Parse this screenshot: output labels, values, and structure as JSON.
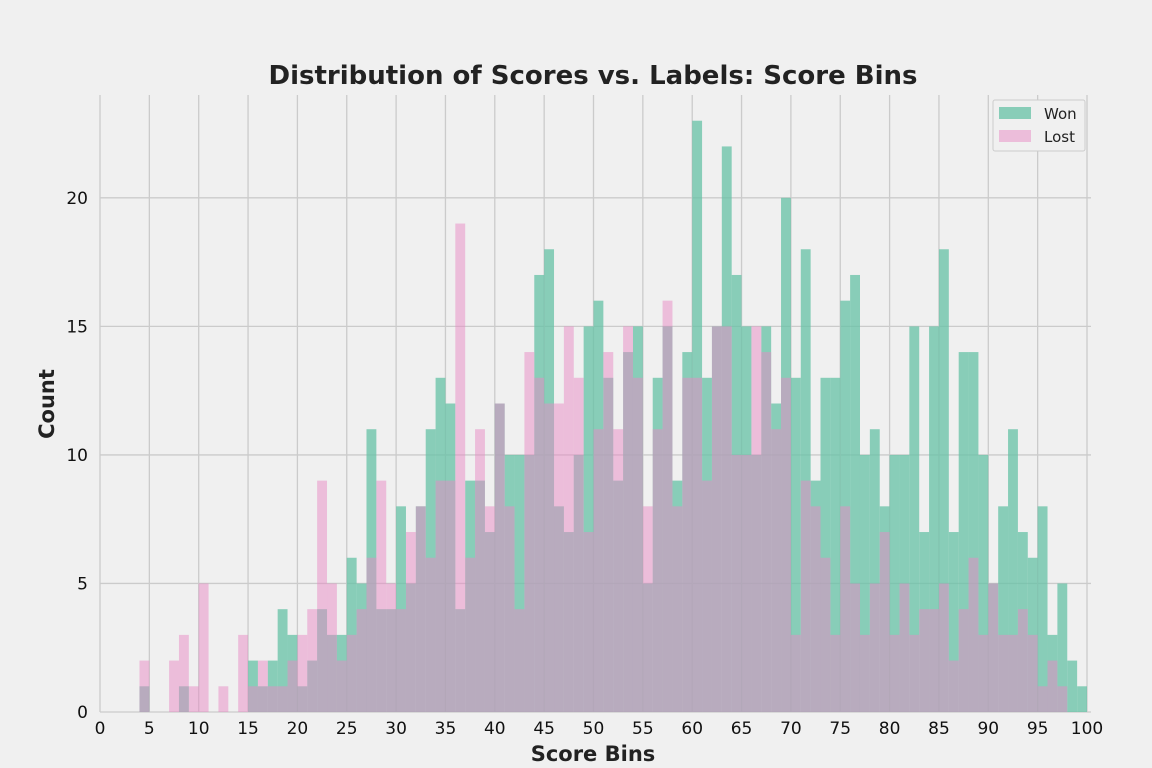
{
  "chart_data": {
    "type": "bar",
    "title": "Distribution of Scores vs. Labels: Score Bins",
    "xlabel": "Score Bins",
    "ylabel": "Count",
    "xlim": [
      0,
      100
    ],
    "ylim": [
      0,
      24
    ],
    "xticks": [
      0,
      5,
      10,
      15,
      20,
      25,
      30,
      35,
      40,
      45,
      50,
      55,
      60,
      65,
      70,
      75,
      80,
      85,
      90,
      95,
      100
    ],
    "yticks": [
      0,
      5,
      10,
      15,
      20
    ],
    "grid": true,
    "legend_position": "top-right",
    "bin_width": 1,
    "bin_starts": [
      0,
      1,
      2,
      3,
      4,
      5,
      6,
      7,
      8,
      9,
      10,
      11,
      12,
      13,
      14,
      15,
      16,
      17,
      18,
      19,
      20,
      21,
      22,
      23,
      24,
      25,
      26,
      27,
      28,
      29,
      30,
      31,
      32,
      33,
      34,
      35,
      36,
      37,
      38,
      39,
      40,
      41,
      42,
      43,
      44,
      45,
      46,
      47,
      48,
      49,
      50,
      51,
      52,
      53,
      54,
      55,
      56,
      57,
      58,
      59,
      60,
      61,
      62,
      63,
      64,
      65,
      66,
      67,
      68,
      69,
      70,
      71,
      72,
      73,
      74,
      75,
      76,
      77,
      78,
      79,
      80,
      81,
      82,
      83,
      84,
      85,
      86,
      87,
      88,
      89,
      90,
      91,
      92,
      93,
      94,
      95,
      96,
      97,
      98,
      99
    ],
    "series": [
      {
        "name": "Won",
        "color": "#66c2a5",
        "values": [
          0,
          0,
          0,
          0,
          1,
          0,
          0,
          0,
          1,
          0,
          0,
          0,
          0,
          0,
          0,
          2,
          1,
          2,
          4,
          3,
          1,
          2,
          4,
          3,
          3,
          6,
          5,
          11,
          4,
          4,
          8,
          5,
          8,
          11,
          13,
          12,
          4,
          9,
          9,
          7,
          12,
          10,
          10,
          10,
          17,
          18,
          8,
          7,
          10,
          15,
          16,
          13,
          9,
          14,
          15,
          5,
          13,
          15,
          9,
          14,
          23,
          13,
          15,
          22,
          17,
          15,
          10,
          15,
          12,
          20,
          13,
          18,
          9,
          13,
          13,
          16,
          17,
          10,
          11,
          8,
          10,
          10,
          15,
          7,
          15,
          18,
          7,
          14,
          14,
          10,
          5,
          8,
          11,
          7,
          6,
          8,
          3,
          5,
          2,
          1
        ]
      },
      {
        "name": "Lost",
        "color": "#e78ac3",
        "values": [
          0,
          0,
          0,
          0,
          2,
          0,
          0,
          2,
          3,
          1,
          5,
          0,
          1,
          0,
          3,
          1,
          2,
          1,
          1,
          2,
          3,
          4,
          9,
          5,
          2,
          3,
          4,
          6,
          9,
          5,
          4,
          7,
          8,
          6,
          9,
          9,
          19,
          6,
          11,
          8,
          12,
          8,
          4,
          14,
          13,
          12,
          12,
          15,
          13,
          7,
          11,
          14,
          11,
          15,
          13,
          8,
          11,
          16,
          8,
          13,
          13,
          9,
          15,
          15,
          10,
          10,
          15,
          14,
          11,
          13,
          3,
          9,
          8,
          6,
          3,
          8,
          5,
          3,
          5,
          7,
          3,
          5,
          3,
          4,
          4,
          5,
          2,
          4,
          6,
          3,
          5,
          3,
          3,
          4,
          3,
          1,
          2,
          1,
          0,
          0
        ]
      }
    ]
  }
}
